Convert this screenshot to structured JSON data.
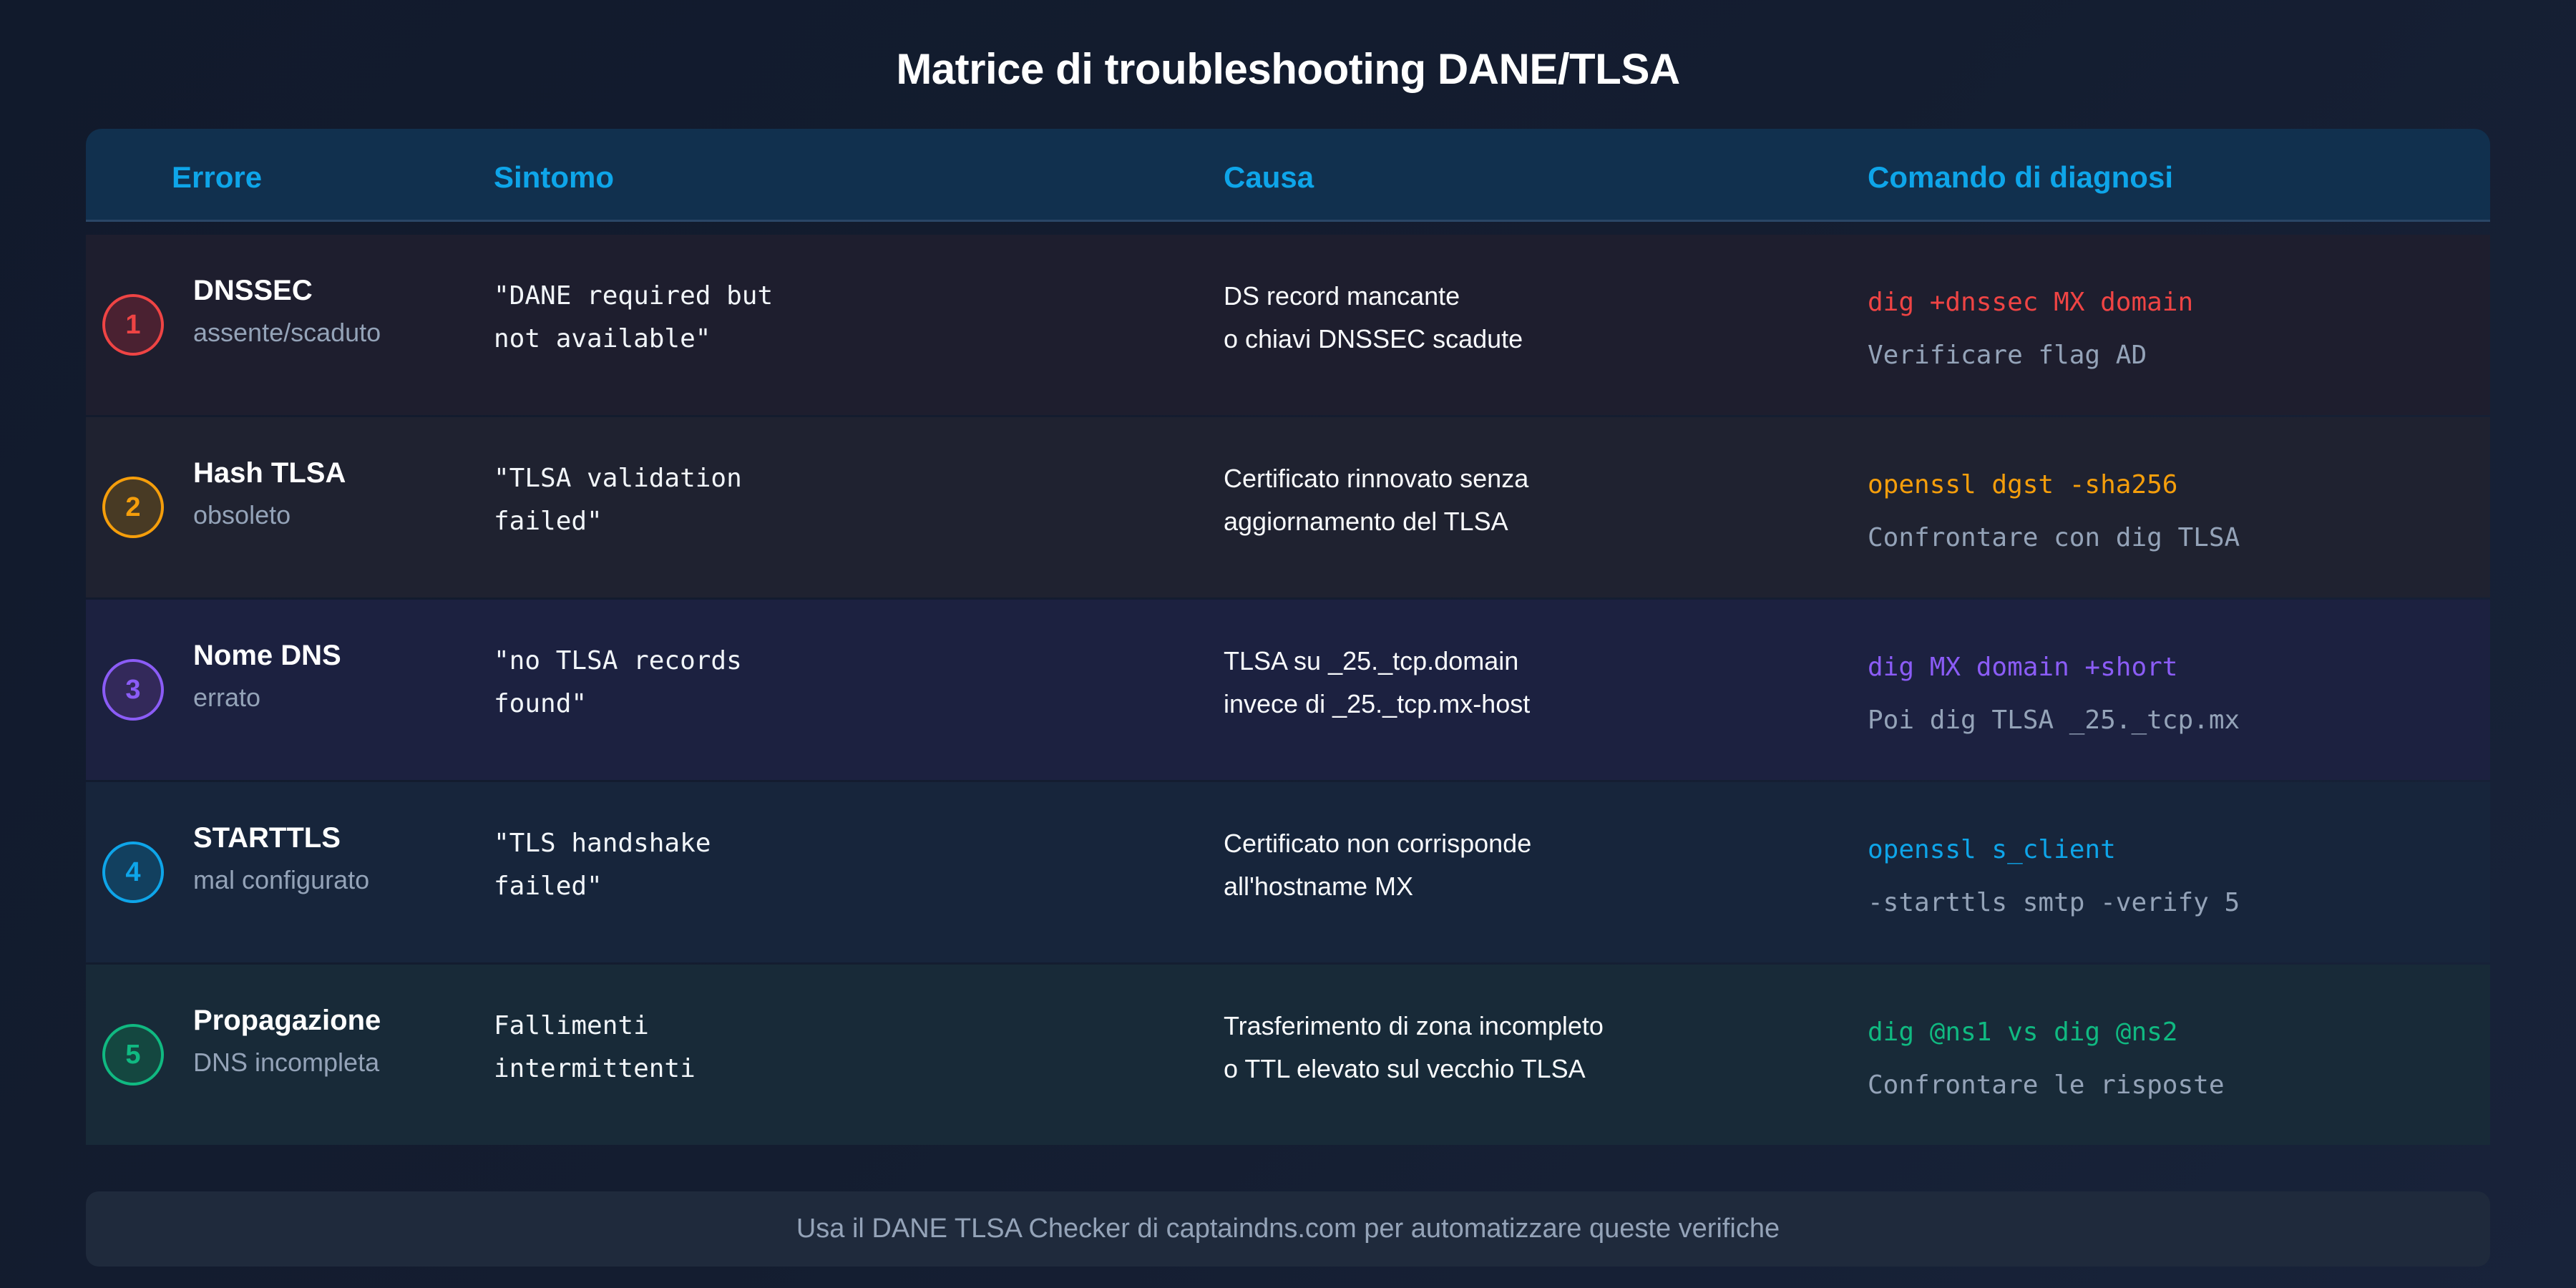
{
  "title": "Matrice di troubleshooting DANE/TLSA",
  "headers": [
    "Errore",
    "Sintomo",
    "Causa",
    "Comando di diagnosi"
  ],
  "colors": {
    "header_text": "#0ea5e9",
    "row_red": "#ef4444",
    "row_orange": "#f59e0b",
    "row_purple": "#8b5cf6",
    "row_blue": "#0ea5e9",
    "row_green": "#10b981"
  },
  "rows": [
    {
      "number": "1",
      "error_title": "DNSSEC",
      "error_sub": "assente/scaduto",
      "symptom": [
        "\"DANE required but",
        "not available\""
      ],
      "cause": [
        "DS record mancante",
        "o chiavi DNSSEC scadute"
      ],
      "command": "dig +dnssec MX domain",
      "command_note": "Verificare flag AD",
      "accent": "#ef4444",
      "circle_bg": "#4a2131",
      "row_bg": "#1e1e2e"
    },
    {
      "number": "2",
      "error_title": "Hash TLSA",
      "error_sub": "obsoleto",
      "symptom": [
        "\"TLSA validation",
        "failed\""
      ],
      "cause": [
        "Certificato rinnovato senza",
        "aggiornamento del TLSA"
      ],
      "command": "openssl dgst -sha256",
      "command_note": "Confrontare con dig TLSA",
      "accent": "#f59e0b",
      "circle_bg": "#483a24",
      "row_bg": "#1f2230"
    },
    {
      "number": "3",
      "error_title": "Nome DNS",
      "error_sub": "errato",
      "symptom": [
        "\"no TLSA records",
        "found\""
      ],
      "cause": [
        "TLSA su _25._tcp.domain",
        "invece di _25._tcp.mx-host"
      ],
      "command": "dig MX domain +short",
      "command_note": "Poi dig TLSA _25._tcp.mx",
      "accent": "#8b5cf6",
      "circle_bg": "#33295a",
      "row_bg": "#1c2140"
    },
    {
      "number": "4",
      "error_title": "STARTTLS",
      "error_sub": "mal configurato",
      "symptom": [
        "\"TLS handshake",
        "failed\""
      ],
      "cause": [
        "Certificato non corrisponde",
        "all'hostname MX"
      ],
      "command": "openssl s_client",
      "command_note": "-starttls smtp -verify 5",
      "accent": "#0ea5e9",
      "circle_bg": "#12405f",
      "row_bg": "#17253b"
    },
    {
      "number": "5",
      "error_title": "Propagazione",
      "error_sub": "DNS incompleta",
      "symptom": [
        "Fallimenti",
        "intermittenti"
      ],
      "cause": [
        "Trasferimento di zona incompleto",
        "o TTL elevato sul vecchio TLSA"
      ],
      "command": "dig @ns1 vs dig @ns2",
      "command_note": "Confrontare le risposte",
      "accent": "#10b981",
      "circle_bg": "#144740",
      "row_bg": "#182a38"
    }
  ],
  "footer": "Usa il DANE TLSA Checker di captaindns.com per automatizzare queste verifiche"
}
